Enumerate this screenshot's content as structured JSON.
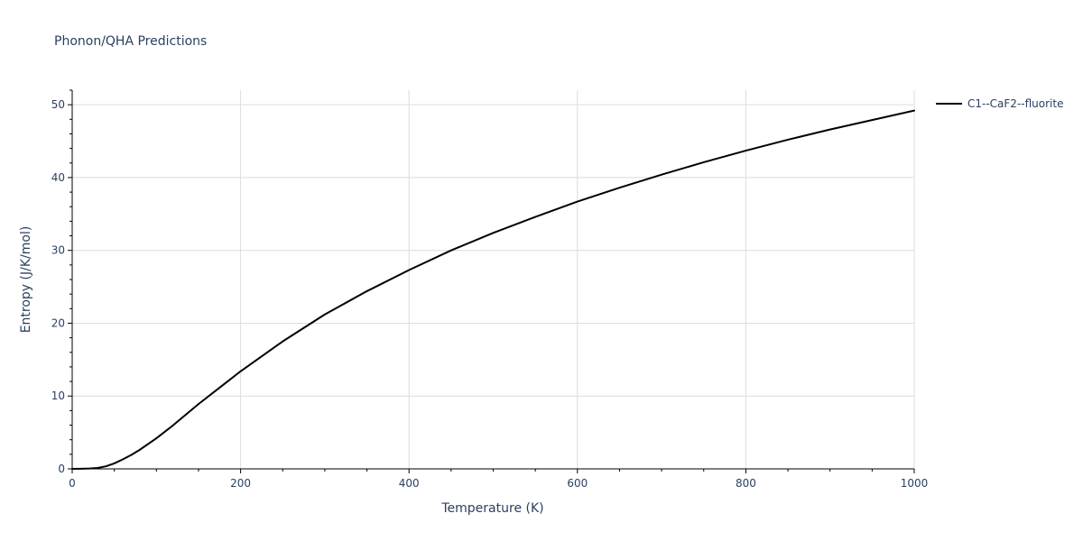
{
  "chart_data": {
    "type": "line",
    "title": "Phonon/QHA Predictions",
    "xlabel": "Temperature (K)",
    "ylabel": "Entropy (J/K/mol)",
    "xlim": [
      0,
      1000
    ],
    "ylim": [
      0,
      52
    ],
    "xticks": [
      0,
      200,
      400,
      600,
      800,
      1000
    ],
    "yticks": [
      0,
      10,
      20,
      30,
      40,
      50
    ],
    "grid": true,
    "legend_position": "top-right outside",
    "series": [
      {
        "name": "C1--CaF2--fluorite",
        "color": "#000000",
        "x": [
          0,
          10,
          20,
          30,
          40,
          50,
          60,
          70,
          80,
          100,
          120,
          150,
          200,
          250,
          300,
          350,
          400,
          450,
          500,
          550,
          600,
          650,
          700,
          750,
          800,
          850,
          900,
          950,
          1000
        ],
        "y": [
          0,
          0.02,
          0.05,
          0.12,
          0.35,
          0.75,
          1.3,
          1.9,
          2.6,
          4.2,
          6.0,
          8.9,
          13.4,
          17.5,
          21.2,
          24.4,
          27.3,
          30.0,
          32.4,
          34.6,
          36.7,
          38.6,
          40.4,
          42.1,
          43.7,
          45.2,
          46.6,
          47.9,
          49.2
        ]
      }
    ]
  }
}
